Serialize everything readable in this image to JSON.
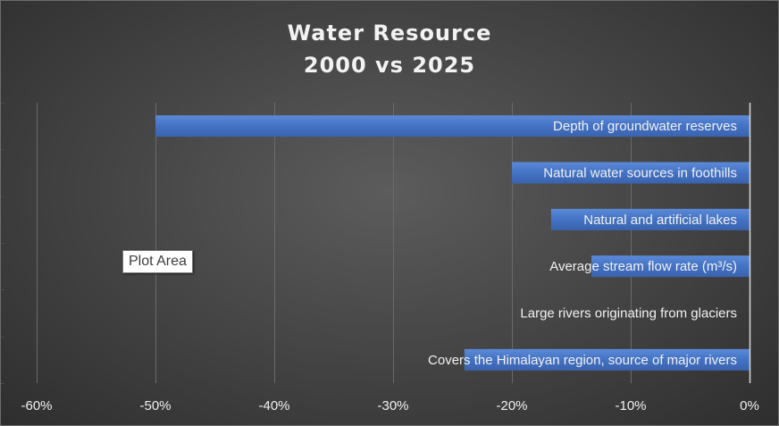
{
  "chart_data": {
    "type": "bar",
    "orientation": "horizontal",
    "title_lines": [
      "Water Resource",
      "2000 vs 2025"
    ],
    "categories": [
      "Depth of groundwater reserves",
      "Natural water sources in foothills",
      "Natural and artificial lakes",
      "Average stream flow rate (m³/s)",
      "Large rivers originating from glaciers",
      "Covers the Himalayan region, source of major rivers"
    ],
    "values": [
      -0.5,
      -0.2,
      -0.167,
      -0.133,
      0.0,
      -0.24
    ],
    "xlim": [
      -0.6,
      0.0
    ],
    "x_ticks": [
      -0.6,
      -0.5,
      -0.4,
      -0.3,
      -0.2,
      -0.1,
      0.0
    ],
    "x_tick_labels": [
      "-60%",
      "-50%",
      "-40%",
      "-30%",
      "-20%",
      "-10%",
      "0%"
    ],
    "xlabel": "",
    "ylabel": "",
    "grid": "vertical",
    "legend": "none",
    "category_labels": "inside-bars-right-aligned"
  },
  "tooltip": {
    "text": "Plot Area"
  },
  "colors": {
    "bar_fill": "#4472c4",
    "bar_highlight": "#5b8ad8",
    "gridline": "#6a6a6a",
    "axis_text": "#f2f2f2",
    "label_text": "#f2f2f2"
  }
}
